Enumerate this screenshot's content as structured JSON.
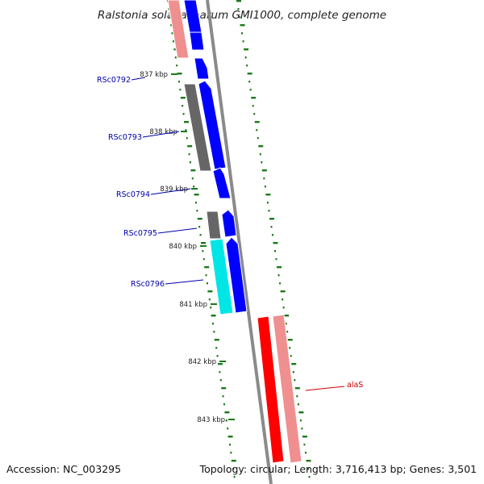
{
  "title": "Ralstonia solanacearum GMI1000, complete genome",
  "footer": {
    "accession": "Accession: NC_003295",
    "stats": "Topology: circular; Length: 3,716,413 bp; Genes: 3,501"
  },
  "scale_ticks": [
    {
      "label": "837 kbp"
    },
    {
      "label": "838 kbp"
    },
    {
      "label": "839 kbp"
    },
    {
      "label": "840 kbp"
    },
    {
      "label": "841 kbp"
    },
    {
      "label": "842 kbp"
    },
    {
      "label": "843 kbp"
    }
  ],
  "gene_labels": [
    {
      "label": "RSc0792",
      "color": "#0000aa"
    },
    {
      "label": "RSc0793",
      "color": "#0000aa"
    },
    {
      "label": "RSc0794",
      "color": "#0000aa"
    },
    {
      "label": "RSc0795",
      "color": "#0000aa"
    },
    {
      "label": "RSc0796",
      "color": "#0000aa"
    },
    {
      "label": "alaS",
      "color": "#cc0000"
    }
  ],
  "colors": {
    "cds": "#0000ff",
    "gene_gray": "#666666",
    "gene_cyan": "#00e0e0",
    "gene_red": "#ff0000",
    "gene_pink": "#f09090",
    "backbone": "#888888",
    "tick_green": "#1a7a1a"
  }
}
